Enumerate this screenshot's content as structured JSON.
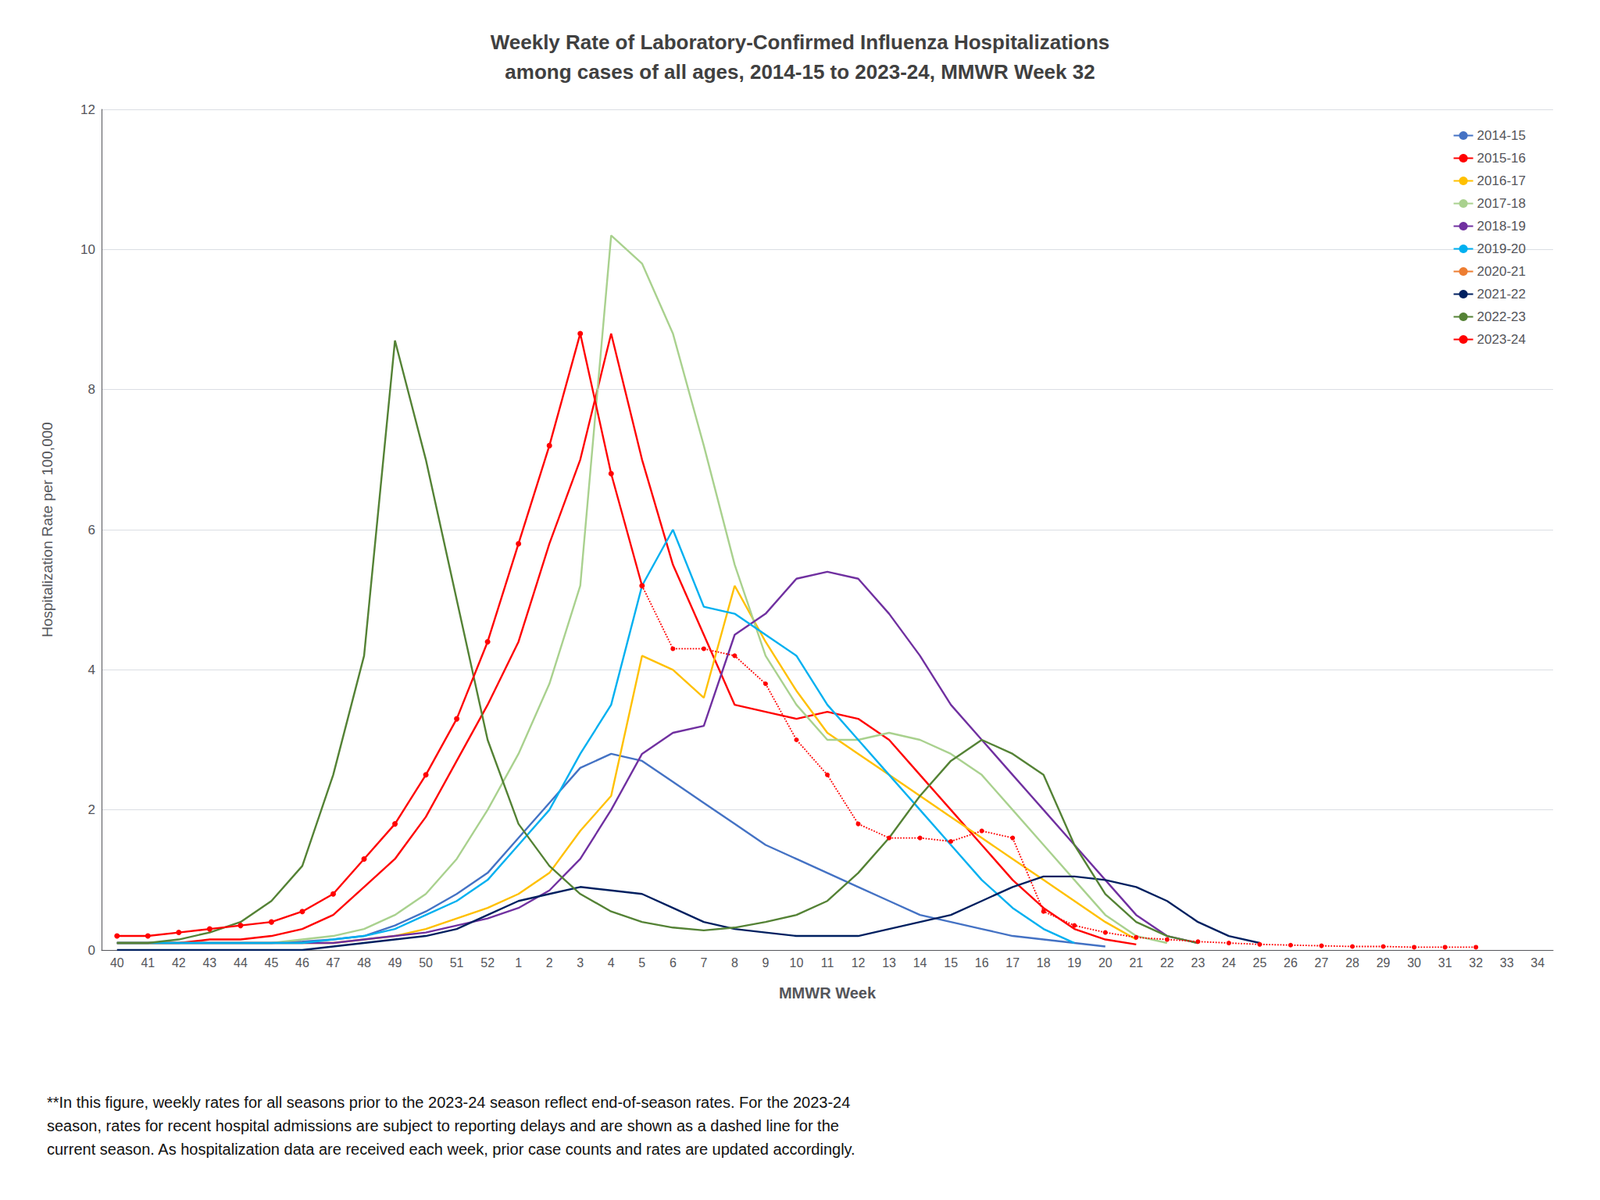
{
  "chart_data": {
    "type": "line",
    "title": "Weekly Rate of Laboratory-Confirmed Influenza Hospitalizations\namong cases of all ages, 2014-15 to 2023-24, MMWR Week 32",
    "xlabel": "MMWR Week",
    "ylabel": "Hospitalization Rate per 100,000",
    "footnote": "**In this figure, weekly rates for all seasons prior to the 2023-24 season reflect end-of-season rates. For the 2023-24\nseason, rates for recent hospital admissions are subject to reporting delays and are shown as a dashed line for the\ncurrent season. As hospitalization data are received each week, prior case counts and rates are updated accordingly.",
    "categories": [
      "40",
      "41",
      "42",
      "43",
      "44",
      "45",
      "46",
      "47",
      "48",
      "49",
      "50",
      "51",
      "52",
      "1",
      "2",
      "3",
      "4",
      "5",
      "6",
      "7",
      "8",
      "9",
      "10",
      "11",
      "12",
      "13",
      "14",
      "15",
      "16",
      "17",
      "18",
      "19",
      "20",
      "21",
      "22",
      "23",
      "24",
      "25",
      "26",
      "27",
      "28",
      "29",
      "30",
      "31",
      "32",
      "33",
      "34"
    ],
    "ylim": [
      0,
      12
    ],
    "yticks": [
      0,
      2,
      4,
      6,
      8,
      10,
      12
    ],
    "grid": true,
    "legend": "upper right",
    "series": [
      {
        "name": "2014-15",
        "color": "#4472C4",
        "line_style": "solid",
        "values": [
          0.1,
          0.1,
          0.1,
          0.1,
          0.1,
          0.1,
          0.12,
          0.15,
          0.2,
          0.35,
          0.55,
          0.8,
          1.1,
          1.6,
          2.1,
          2.6,
          2.8,
          2.7,
          2.4,
          2.1,
          1.8,
          1.5,
          1.3,
          1.1,
          0.9,
          0.7,
          0.5,
          0.4,
          0.3,
          0.2,
          0.15,
          0.1,
          0.05,
          null,
          null,
          null,
          null,
          null,
          null,
          null,
          null,
          null,
          null,
          null,
          null,
          null,
          null
        ]
      },
      {
        "name": "2015-16",
        "color": "#FF0000",
        "line_style": "solid",
        "values": [
          0.1,
          0.1,
          0.1,
          0.15,
          0.15,
          0.2,
          0.3,
          0.5,
          0.9,
          1.3,
          1.9,
          2.7,
          3.5,
          4.4,
          5.8,
          7.0,
          8.8,
          7.0,
          5.5,
          4.5,
          3.5,
          3.4,
          3.3,
          3.4,
          3.3,
          3.0,
          2.5,
          2.0,
          1.5,
          1.0,
          0.6,
          0.3,
          0.15,
          0.08,
          null,
          null,
          null,
          null,
          null,
          null,
          null,
          null,
          null,
          null,
          null,
          null,
          null
        ]
      },
      {
        "name": "2016-17",
        "color": "#FFC000",
        "line_style": "solid",
        "values": [
          0.1,
          0.1,
          0.1,
          0.1,
          0.1,
          0.1,
          0.1,
          0.1,
          0.15,
          0.2,
          0.3,
          0.45,
          0.6,
          0.8,
          1.1,
          1.7,
          2.2,
          4.2,
          4.0,
          3.6,
          5.2,
          4.4,
          3.7,
          3.1,
          2.8,
          2.5,
          2.2,
          1.9,
          1.6,
          1.3,
          1.0,
          0.7,
          0.4,
          0.15,
          null,
          null,
          null,
          null,
          null,
          null,
          null,
          null,
          null,
          null,
          null,
          null,
          null
        ]
      },
      {
        "name": "2017-18",
        "color": "#A9D18E",
        "line_style": "solid",
        "values": [
          0.1,
          0.1,
          0.1,
          0.1,
          0.1,
          0.1,
          0.15,
          0.2,
          0.3,
          0.5,
          0.8,
          1.3,
          2.0,
          2.8,
          3.8,
          5.2,
          10.2,
          9.8,
          8.8,
          7.2,
          5.5,
          4.2,
          3.5,
          3.0,
          3.0,
          3.1,
          3.0,
          2.8,
          2.5,
          2.0,
          1.5,
          1.0,
          0.5,
          0.2,
          0.1,
          null,
          null,
          null,
          null,
          null,
          null,
          null,
          null,
          null,
          null,
          null,
          null
        ]
      },
      {
        "name": "2018-19",
        "color": "#7030A0",
        "line_style": "solid",
        "values": [
          0.1,
          0.1,
          0.1,
          0.1,
          0.1,
          0.1,
          0.1,
          0.1,
          0.15,
          0.2,
          0.25,
          0.35,
          0.45,
          0.6,
          0.85,
          1.3,
          2.0,
          2.8,
          3.1,
          3.2,
          4.5,
          4.8,
          5.3,
          5.4,
          5.3,
          4.8,
          4.2,
          3.5,
          3.0,
          2.5,
          2.0,
          1.5,
          1.0,
          0.5,
          0.2,
          0.1,
          null,
          null,
          null,
          null,
          null,
          null,
          null,
          null,
          null,
          null,
          null
        ]
      },
      {
        "name": "2019-20",
        "color": "#00B0F0",
        "line_style": "solid",
        "values": [
          0.1,
          0.1,
          0.1,
          0.1,
          0.1,
          0.1,
          0.1,
          0.15,
          0.2,
          0.3,
          0.5,
          0.7,
          1.0,
          1.5,
          2.0,
          2.8,
          3.5,
          5.2,
          6.0,
          4.9,
          4.8,
          4.5,
          4.2,
          3.5,
          3.0,
          2.5,
          2.0,
          1.5,
          1.0,
          0.6,
          0.3,
          0.1,
          null,
          null,
          null,
          null,
          null,
          null,
          null,
          null,
          null,
          null,
          null,
          null,
          null,
          null,
          null
        ]
      },
      {
        "name": "2020-21",
        "color": "#ED7D31",
        "line_style": "solid",
        "values": [
          null,
          null,
          null,
          null,
          null,
          null,
          null,
          null,
          null,
          null,
          null,
          null,
          null,
          null,
          null,
          null,
          null,
          null,
          null,
          null,
          null,
          null,
          null,
          null,
          null,
          null,
          null,
          null,
          null,
          null,
          null,
          null,
          null,
          null,
          null,
          null,
          null,
          null,
          null,
          null,
          null,
          null,
          null,
          null,
          null,
          null,
          null
        ]
      },
      {
        "name": "2021-22",
        "color": "#002060",
        "line_style": "solid",
        "values": [
          0.0,
          0.0,
          0.0,
          0.0,
          0.0,
          0.0,
          0.0,
          0.05,
          0.1,
          0.15,
          0.2,
          0.3,
          0.5,
          0.7,
          0.8,
          0.9,
          0.85,
          0.8,
          0.6,
          0.4,
          0.3,
          0.25,
          0.2,
          0.2,
          0.2,
          0.3,
          0.4,
          0.5,
          0.7,
          0.9,
          1.05,
          1.05,
          1.0,
          0.9,
          0.7,
          0.4,
          0.2,
          0.1,
          null,
          null,
          null,
          null,
          null,
          null,
          null,
          null,
          null
        ]
      },
      {
        "name": "2022-23",
        "color": "#548235",
        "line_style": "solid",
        "values": [
          0.1,
          0.1,
          0.15,
          0.25,
          0.4,
          0.7,
          1.2,
          2.5,
          4.2,
          8.7,
          7.0,
          5.0,
          3.0,
          1.8,
          1.2,
          0.8,
          0.55,
          0.4,
          0.32,
          0.28,
          0.32,
          0.4,
          0.5,
          0.7,
          1.1,
          1.6,
          2.2,
          2.7,
          3.0,
          2.8,
          2.5,
          1.5,
          0.8,
          0.4,
          0.2,
          0.1,
          null,
          null,
          null,
          null,
          null,
          null,
          null,
          null,
          null,
          null,
          null
        ]
      },
      {
        "name": "2023-24",
        "color": "#FF0000",
        "line_style": "solid",
        "marker": "circle",
        "values": [
          0.2,
          0.2,
          0.25,
          0.3,
          0.35,
          0.4,
          0.55,
          0.8,
          1.3,
          1.8,
          2.5,
          3.3,
          4.4,
          5.8,
          7.2,
          8.8,
          6.8,
          5.2,
          null,
          null,
          null,
          null,
          null,
          null,
          null,
          null,
          null,
          null,
          null,
          null,
          null,
          null,
          null,
          null,
          null,
          null,
          null,
          null,
          null,
          null,
          null,
          null,
          null,
          null,
          null,
          null,
          null
        ]
      },
      {
        "name": "2023-24",
        "color": "#FF0000",
        "line_style": "dotted",
        "marker": "circle",
        "values": [
          null,
          null,
          null,
          null,
          null,
          null,
          null,
          null,
          null,
          null,
          null,
          null,
          null,
          null,
          null,
          null,
          null,
          5.2,
          4.3,
          4.3,
          4.2,
          3.8,
          3.0,
          2.5,
          1.8,
          1.6,
          1.6,
          1.55,
          1.7,
          1.6,
          0.55,
          0.35,
          0.25,
          0.18,
          0.15,
          0.12,
          0.1,
          0.08,
          0.07,
          0.06,
          0.05,
          0.05,
          0.04,
          0.04,
          0.04,
          null,
          null
        ]
      }
    ]
  }
}
